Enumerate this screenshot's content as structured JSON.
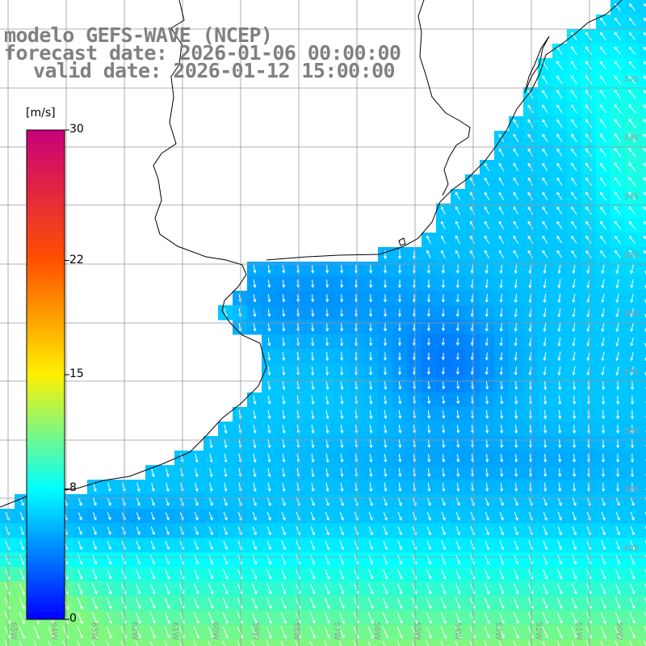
{
  "title": {
    "line1": "modelo GEFS-WAVE (NCEP)",
    "line2": "forecast date: 2026-01-06 00:00:00",
    "line3": "valid date: 2026-01-12 15:00:00"
  },
  "colorbar": {
    "units": "[m/s]",
    "ticks": [
      {
        "value": 30,
        "label": "30"
      },
      {
        "value": 22,
        "label": "22"
      },
      {
        "value": 15,
        "label": "15"
      },
      {
        "value": 8,
        "label": "8"
      },
      {
        "value": 0,
        "label": "0"
      }
    ],
    "colors": {
      "0": "#0000ff",
      "8": "#00ffff",
      "15": "#fff000",
      "22": "#ff5000",
      "30": "#c8007a"
    }
  },
  "map": {
    "variable": "wind speed and direction",
    "lat_labels": [
      "32S",
      "33S",
      "34S",
      "35S",
      "36S",
      "37S",
      "38S",
      "39S",
      "40S"
    ],
    "lon_labels": [
      "65W",
      "64W",
      "63W",
      "62W",
      "61W",
      "60W",
      "59W",
      "58W",
      "57W",
      "56W",
      "55W",
      "54W",
      "53W",
      "52W",
      "51W",
      "50W"
    ],
    "colors": {
      "land": "#ffffff",
      "coastline": "#000000",
      "gridlines": "#999999",
      "arrows": "#ffffff"
    }
  }
}
